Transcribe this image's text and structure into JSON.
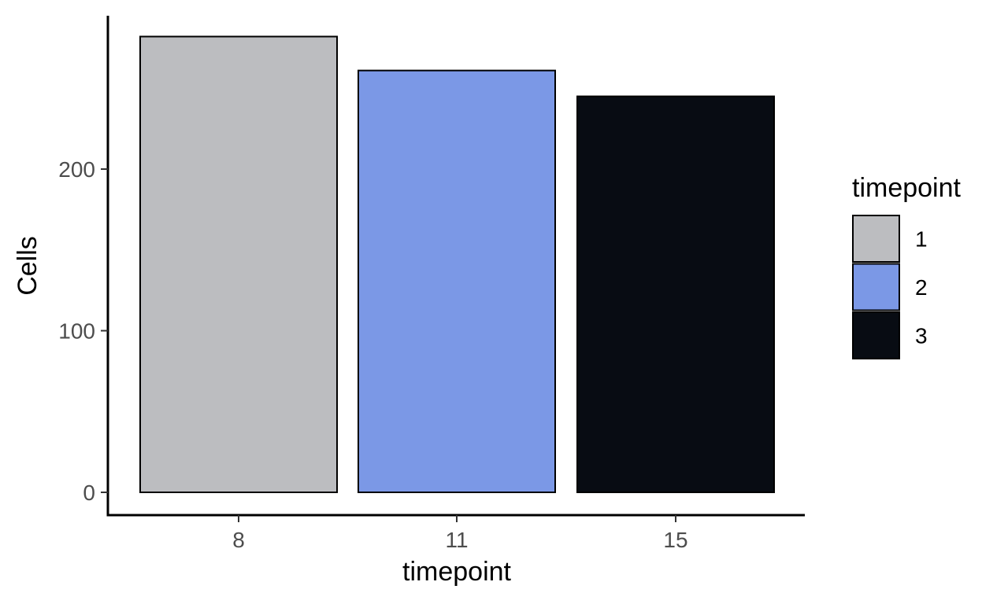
{
  "chart_data": {
    "type": "bar",
    "categories": [
      "8",
      "11",
      "15"
    ],
    "values": [
      282,
      261,
      245
    ],
    "fill_groups": [
      "1",
      "2",
      "3"
    ],
    "colors": [
      "#bcbdc0",
      "#7b98e6",
      "#080c13"
    ],
    "xlabel": "timepoint",
    "ylabel": "Cells",
    "ylim": [
      -14,
      296
    ],
    "yticks": [
      0,
      100,
      200
    ],
    "grid": false,
    "legend": {
      "title": "timepoint",
      "placement": "right",
      "entries": [
        "1",
        "2",
        "3"
      ]
    }
  }
}
